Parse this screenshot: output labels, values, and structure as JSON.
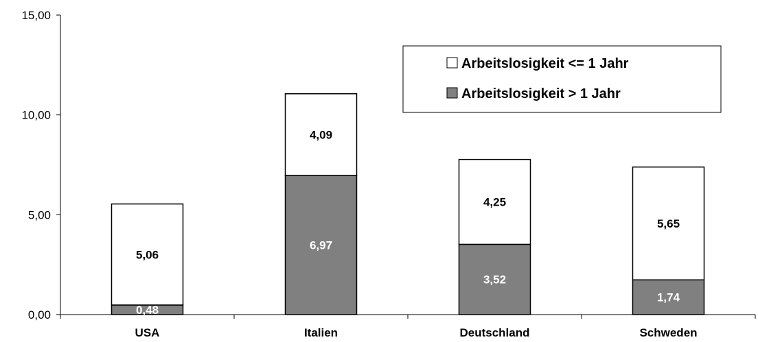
{
  "chart_data": {
    "type": "bar",
    "stacked": true,
    "categories": [
      "USA",
      "Italien",
      "Deutschland",
      "Schweden"
    ],
    "series": [
      {
        "name": "Arbeitslosigkeit > 1 Jahr",
        "values": [
          0.48,
          6.97,
          3.52,
          1.74
        ],
        "color": "#808080",
        "label_color": "#ffffff"
      },
      {
        "name": "Arbeitslosigkeit <= 1 Jahr",
        "values": [
          5.06,
          4.09,
          4.25,
          5.65
        ],
        "color": "#ffffff",
        "label_color": "#000000"
      }
    ],
    "value_labels": [
      [
        "0,48",
        "6,97",
        "3,52",
        "1,74"
      ],
      [
        "5,06",
        "4,09",
        "4,25",
        "5,65"
      ]
    ],
    "yticks": [
      0,
      5,
      10,
      15
    ],
    "ytick_labels": [
      "0,00",
      "5,00",
      "10,00",
      "15,00"
    ],
    "ylim": [
      0,
      15
    ],
    "grid": false,
    "legend": {
      "position": "top-right",
      "entries": [
        "Arbeitslosigkeit <= 1 Jahr",
        "Arbeitslosigkeit > 1 Jahr"
      ]
    }
  }
}
